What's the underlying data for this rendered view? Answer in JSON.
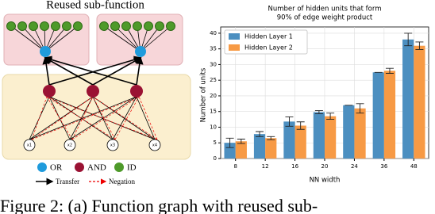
{
  "diagram": {
    "title": "Reused sub-function",
    "inputs": [
      "x1",
      "x2",
      "x3",
      "x4"
    ],
    "legend": [
      "OR",
      "AND",
      "ID"
    ],
    "edges": [
      "Transfer",
      "Negation"
    ]
  },
  "chart_data": {
    "type": "bar",
    "title": "Number of hidden units that form",
    "subtitle": "90% of edge weight product",
    "x_label": "NN width",
    "y_label": "Number of units",
    "categories": [
      "8",
      "12",
      "16",
      "20",
      "24",
      "36",
      "48"
    ],
    "series": [
      {
        "name": "Hidden Layer 1",
        "color": "#4c8fc0",
        "values": [
          5,
          7.8,
          11.8,
          14.8,
          17,
          27.5,
          38
        ],
        "errors": [
          1.5,
          0.8,
          1.5,
          0.5,
          0,
          0,
          2
        ]
      },
      {
        "name": "Hidden Layer 2",
        "color": "#f79a45",
        "values": [
          5.5,
          6.5,
          10.5,
          13.5,
          16,
          28,
          36
        ],
        "errors": [
          0.7,
          0.5,
          1.2,
          1,
          1.5,
          0.8,
          1.2
        ]
      }
    ],
    "ylim": [
      0,
      42
    ],
    "yticks": [
      0,
      5,
      10,
      15,
      20,
      25,
      30,
      35,
      40
    ],
    "grid": true,
    "legend": "upper left"
  },
  "caption": "Figure 2: (a) Function graph with reused sub-"
}
